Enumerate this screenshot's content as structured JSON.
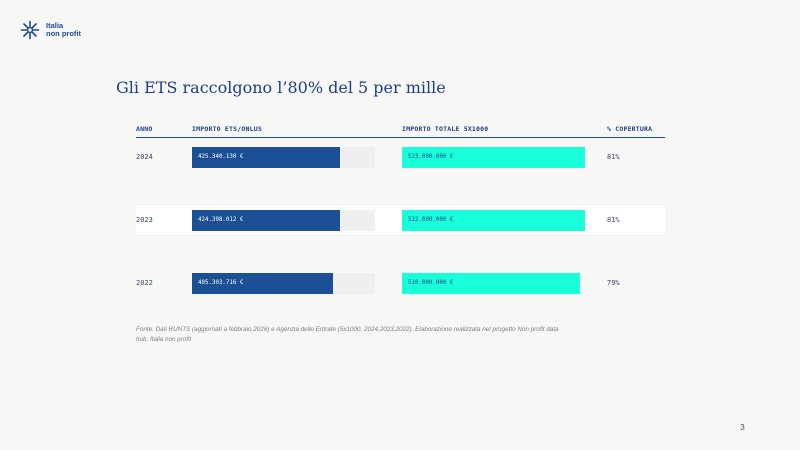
{
  "brand": {
    "line1": "Italia",
    "line2": "non profit",
    "color": "#1c4a9a"
  },
  "title": "Gli ETS raccolgono l’80% del 5 per mille",
  "table": {
    "headers": [
      "ANNO",
      "IMPORTO ETS/ONLUS",
      "IMPORTO TOTALE 5X1000",
      "% COPERTURA"
    ]
  },
  "chart_data": {
    "type": "bar",
    "categories": [
      "2024",
      "2023",
      "2022"
    ],
    "series": [
      {
        "name": "IMPORTO ETS/ONLUS",
        "values": [
          425340130,
          424398012,
          405303716
        ],
        "color": "#1b4f96"
      },
      {
        "name": "IMPORTO TOTALE 5X1000",
        "values": [
          523000000,
          522000000,
          510000000
        ],
        "color": "#19ffd9"
      }
    ],
    "value_labels": {
      "ets": [
        "425.340.130 €",
        "424.398.012 €",
        "405.303.716 €"
      ],
      "totale": [
        "523.000.000 €",
        "522.000.000 €",
        "510.000.000 €"
      ]
    },
    "coverage": [
      "81%",
      "81%",
      "79%"
    ],
    "highlighted_row": "2023",
    "title": "Gli ETS raccolgono l’80% del 5 per mille",
    "xlabel": "",
    "ylabel": ""
  },
  "footnote": "Fonte: Dati RUNTS (aggiornati a febbraio 2026) e Agenzia delle Entrate (5x1000, 2024,2023,2022). Elaborazione realizzata nel progetto Non profit data hub, Italia non profit",
  "page_number": "3"
}
